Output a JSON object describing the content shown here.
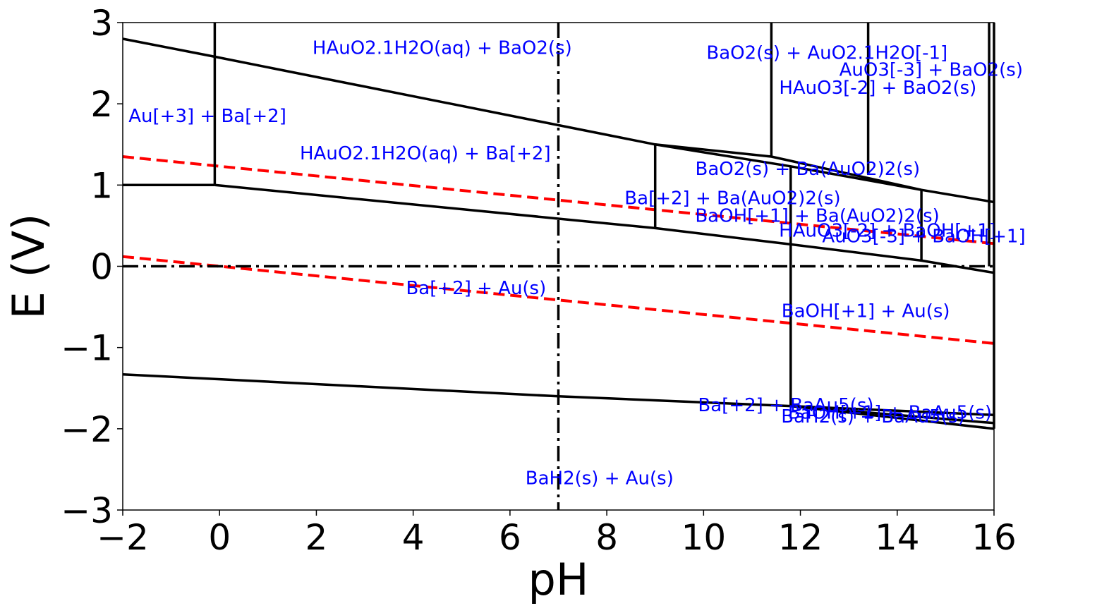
{
  "chart_data": {
    "type": "line",
    "title": "",
    "xlabel": "pH",
    "ylabel": "E (V)",
    "xlim": [
      -2,
      16
    ],
    "ylim": [
      -3,
      3
    ],
    "grid": false,
    "x_ticks": [
      -2,
      0,
      2,
      4,
      6,
      8,
      10,
      12,
      14,
      16
    ],
    "y_ticks": [
      -3,
      -2,
      -1,
      0,
      1,
      2,
      3
    ],
    "colors": {
      "boundary": "#000000",
      "water": "#ff0000",
      "label": "#0000ff",
      "reference": "#000000"
    },
    "boundaries": [
      {
        "name": "Au[+3]/Au(s)",
        "points": [
          [
            -2,
            1.0
          ],
          [
            -0.1,
            1.0
          ]
        ]
      },
      {
        "name": "HAuO2/Au(s)",
        "points": [
          [
            -0.1,
            1.0
          ],
          [
            9.0,
            0.47
          ],
          [
            11.8,
            0.27
          ],
          [
            14.5,
            0.07
          ],
          [
            16,
            -0.08
          ]
        ]
      },
      {
        "name": "upper oxide",
        "points": [
          [
            -2,
            2.8
          ],
          [
            -0.1,
            2.58
          ],
          [
            9.0,
            1.5
          ],
          [
            11.4,
            1.35
          ],
          [
            14.5,
            0.94
          ],
          [
            16,
            0.79
          ]
        ]
      },
      {
        "name": "Ba(AuO2)2 top",
        "points": [
          [
            9.0,
            1.5
          ],
          [
            11.8,
            1.23
          ],
          [
            14.5,
            0.94
          ]
        ]
      },
      {
        "name": "pH -0.1",
        "points": [
          [
            -0.1,
            1.0
          ],
          [
            -0.1,
            3.0
          ]
        ]
      },
      {
        "name": "pH 9.0",
        "points": [
          [
            9.0,
            0.47
          ],
          [
            9.0,
            1.5
          ]
        ]
      },
      {
        "name": "pH 11.4",
        "points": [
          [
            11.4,
            1.35
          ],
          [
            11.4,
            3.0
          ]
        ]
      },
      {
        "name": "pH 11.8",
        "points": [
          [
            11.8,
            1.23
          ],
          [
            11.8,
            -1.72
          ]
        ]
      },
      {
        "name": "pH 13.4",
        "points": [
          [
            13.4,
            3.0
          ],
          [
            13.4,
            1.14
          ]
        ]
      },
      {
        "name": "pH 14.5",
        "points": [
          [
            14.5,
            0.94
          ],
          [
            14.5,
            0.07
          ]
        ]
      },
      {
        "name": "pH 15.9",
        "points": [
          [
            15.9,
            3.0
          ],
          [
            15.9,
            0.0
          ]
        ]
      },
      {
        "name": "pH 16",
        "points": [
          [
            16,
            3.0
          ],
          [
            16,
            -2.0
          ]
        ]
      },
      {
        "name": "BaH2 boundary",
        "points": [
          [
            -2,
            -1.33
          ],
          [
            7.0,
            -1.6
          ],
          [
            11.8,
            -1.72
          ],
          [
            16,
            -1.83
          ]
        ]
      },
      {
        "name": "BaAu5 lower",
        "points": [
          [
            11.8,
            -1.72
          ],
          [
            16,
            -2.0
          ]
        ]
      },
      {
        "name": "BaAu5 middle",
        "points": [
          [
            11.8,
            -1.72
          ],
          [
            16,
            -1.93
          ]
        ]
      }
    ],
    "water_lines": [
      {
        "name": "O2/H2O",
        "points": [
          [
            -2,
            1.35
          ],
          [
            16,
            0.28
          ]
        ]
      },
      {
        "name": "H+/H2",
        "points": [
          [
            -2,
            0.12
          ],
          [
            16,
            -0.95
          ]
        ]
      }
    ],
    "reference_lines": {
      "vertical_x": 7,
      "horizontal_y": 0
    },
    "regions": [
      {
        "label": "HAuO2.1H2O(aq) + BaO2(s)",
        "x": 4.6,
        "y": 2.68
      },
      {
        "label": "BaO2(s) + AuO2.1H2O[-1]",
        "x": 12.55,
        "y": 2.62
      },
      {
        "label": "AuO3[-3] + BaO2(s)",
        "x": 14.7,
        "y": 2.41
      },
      {
        "label": "HAuO3[-2] + BaO2(s)",
        "x": 13.6,
        "y": 2.19
      },
      {
        "label": "Au[+3] + Ba[+2]",
        "x": -0.25,
        "y": 1.84
      },
      {
        "label": "HAuO2.1H2O(aq) + Ba[+2]",
        "x": 4.25,
        "y": 1.38
      },
      {
        "label": "BaO2(s) + Ba(AuO2)2(s)",
        "x": 12.15,
        "y": 1.19
      },
      {
        "label": "Ba[+2] + Ba(AuO2)2(s)",
        "x": 10.6,
        "y": 0.83
      },
      {
        "label": "BaOH[+1] + Ba(AuO2)2(s)",
        "x": 12.35,
        "y": 0.61
      },
      {
        "label": "HAuO3[-2] + BaOH[+1]",
        "x": 13.8,
        "y": 0.43
      },
      {
        "label": "AuO3[-3] + BaOH[+1]",
        "x": 14.55,
        "y": 0.36
      },
      {
        "label": "Ba[+2] + Au(s)",
        "x": 5.3,
        "y": -0.28
      },
      {
        "label": "BaOH[+1] + Au(s)",
        "x": 13.35,
        "y": -0.56
      },
      {
        "label": "Ba[+2] + BaAu5(s)",
        "x": 11.7,
        "y": -1.72
      },
      {
        "label": "BaOH[+1] + BaAu5(s)",
        "x": 13.85,
        "y": -1.81
      },
      {
        "label": "BaH2(s) + BaAu5(s)",
        "x": 13.5,
        "y": -1.86
      },
      {
        "label": "BaH2(s) + Au(s)",
        "x": 7.85,
        "y": -2.62
      }
    ]
  }
}
